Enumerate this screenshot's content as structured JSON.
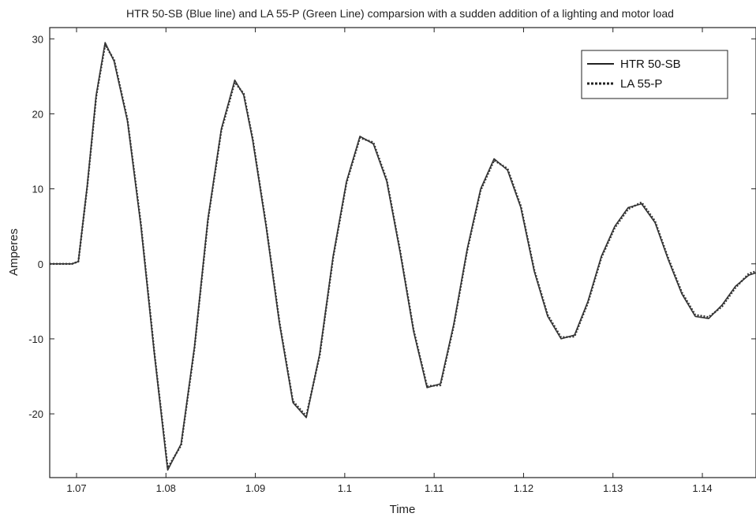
{
  "chart_data": {
    "type": "line",
    "title": "HTR 50-SB (Blue line) and LA 55-P (Green Line) comparsion with a sudden addition of a lighting and motor load",
    "xlabel": "Time",
    "ylabel": "Amperes",
    "xlim": [
      1.067,
      1.146
    ],
    "ylim": [
      -28.5,
      31.5
    ],
    "x_ticks": [
      1.07,
      1.08,
      1.09,
      1.1,
      1.11,
      1.12,
      1.13,
      1.14
    ],
    "x_tick_labels": [
      "1.07",
      "1.08",
      "1.09",
      "1.1",
      "1.11",
      "1.12",
      "1.13",
      "1.14"
    ],
    "y_ticks": [
      -20,
      -10,
      0,
      10,
      20,
      30
    ],
    "y_tick_labels": [
      "-20",
      "-10",
      "0",
      "10",
      "20",
      "30"
    ],
    "grid": false,
    "legend_position": "top-right",
    "series": [
      {
        "name": "HTR 50-SB",
        "style": "solid",
        "color": "#333333",
        "x": [
          1.067,
          1.0695,
          1.0702,
          1.0712,
          1.0722,
          1.0732,
          1.0742,
          1.0757,
          1.0772,
          1.0787,
          1.0802,
          1.0817,
          1.0832,
          1.0847,
          1.0862,
          1.0877,
          1.0887,
          1.0897,
          1.0912,
          1.0927,
          1.0942,
          1.0957,
          1.0972,
          1.0987,
          1.1002,
          1.1017,
          1.1032,
          1.1047,
          1.1062,
          1.1077,
          1.1092,
          1.1107,
          1.1122,
          1.1137,
          1.1152,
          1.1167,
          1.1182,
          1.1197,
          1.1212,
          1.1227,
          1.1242,
          1.1257,
          1.1272,
          1.1287,
          1.1302,
          1.1317,
          1.1332,
          1.1347,
          1.1362,
          1.1377,
          1.1392,
          1.1407,
          1.1422,
          1.1437,
          1.1452,
          1.146
        ],
        "y": [
          0,
          0,
          0.3,
          10.5,
          22.5,
          29.5,
          27.0,
          19.0,
          5.0,
          -12.0,
          -27.5,
          -24.0,
          -11.0,
          6.0,
          18.0,
          24.5,
          22.5,
          16.5,
          5.0,
          -8.0,
          -18.5,
          -20.5,
          -12.0,
          1.0,
          11.0,
          17.0,
          16.0,
          11.0,
          1.5,
          -9.0,
          -16.5,
          -16.0,
          -8.0,
          2.0,
          10.0,
          14.0,
          12.5,
          7.5,
          -1.0,
          -7.0,
          -10.0,
          -9.5,
          -5.0,
          1.0,
          5.0,
          7.5,
          8.0,
          5.5,
          0.5,
          -4.0,
          -7.0,
          -7.3,
          -5.5,
          -3.0,
          -1.5,
          -1.2
        ]
      },
      {
        "name": "LA 55-P",
        "style": "dotted",
        "color": "#333333",
        "x": [
          1.067,
          1.0695,
          1.0702,
          1.0712,
          1.0722,
          1.0732,
          1.0742,
          1.0757,
          1.0772,
          1.0787,
          1.0802,
          1.0817,
          1.0832,
          1.0847,
          1.0862,
          1.0877,
          1.0887,
          1.0897,
          1.0912,
          1.0927,
          1.0942,
          1.0957,
          1.0972,
          1.0987,
          1.1002,
          1.1017,
          1.1032,
          1.1047,
          1.1062,
          1.1077,
          1.1092,
          1.1107,
          1.1122,
          1.1137,
          1.1152,
          1.1167,
          1.1182,
          1.1197,
          1.1212,
          1.1227,
          1.1242,
          1.1257,
          1.1272,
          1.1287,
          1.1302,
          1.1317,
          1.1332,
          1.1347,
          1.1362,
          1.1377,
          1.1392,
          1.1407,
          1.1422,
          1.1437,
          1.1452,
          1.146
        ],
        "y": [
          0,
          0,
          0.3,
          10.3,
          22.3,
          29.2,
          27.2,
          19.2,
          5.3,
          -11.8,
          -27.2,
          -24.2,
          -11.2,
          5.8,
          17.8,
          24.2,
          22.7,
          16.7,
          5.2,
          -7.8,
          -18.3,
          -20.3,
          -12.2,
          0.8,
          10.8,
          16.8,
          16.2,
          11.2,
          1.7,
          -8.8,
          -16.3,
          -16.2,
          -8.2,
          1.8,
          9.8,
          13.8,
          12.7,
          7.7,
          -0.8,
          -6.8,
          -9.8,
          -9.7,
          -5.2,
          0.8,
          4.8,
          7.3,
          8.2,
          5.7,
          0.7,
          -3.8,
          -6.8,
          -7.1,
          -5.7,
          -3.2,
          -1.3,
          -1.0
        ]
      }
    ]
  }
}
